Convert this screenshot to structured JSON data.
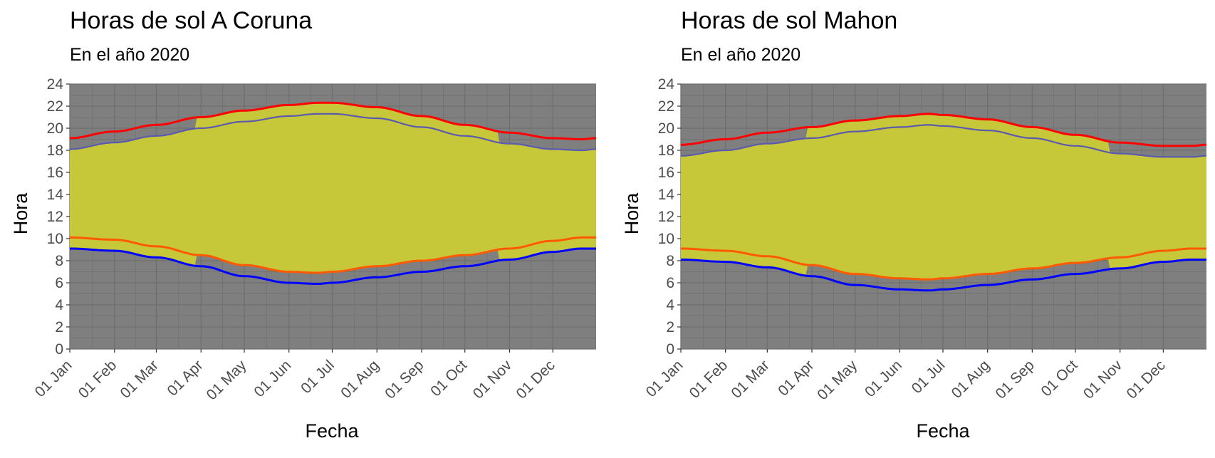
{
  "chart_data": [
    {
      "type": "area",
      "title": "Horas de sol A Coruna",
      "subtitle": "En el año 2020",
      "xlabel": "Fecha",
      "ylabel": "Hora",
      "ylim": [
        0,
        24
      ],
      "yticks": [
        "0",
        "2",
        "4",
        "6",
        "8",
        "10",
        "12",
        "14",
        "16",
        "18",
        "20",
        "22",
        "24"
      ],
      "xlim": [
        "2020-01-01",
        "2020-12-31"
      ],
      "xticks": [
        {
          "date": "2020-01-01",
          "label": "01 Jan"
        },
        {
          "date": "2020-02-01",
          "label": "01 Feb"
        },
        {
          "date": "2020-03-01",
          "label": "01 Mar"
        },
        {
          "date": "2020-04-01",
          "label": "01 Apr"
        },
        {
          "date": "2020-05-01",
          "label": "01 May"
        },
        {
          "date": "2020-06-01",
          "label": "01 Jun"
        },
        {
          "date": "2020-07-01",
          "label": "01 Jul"
        },
        {
          "date": "2020-08-01",
          "label": "01 Aug"
        },
        {
          "date": "2020-09-01",
          "label": "01 Sep"
        },
        {
          "date": "2020-10-01",
          "label": "01 Oct"
        },
        {
          "date": "2020-11-01",
          "label": "01 Nov"
        },
        {
          "date": "2020-12-01",
          "label": "01 Dec"
        }
      ],
      "dst_period": [
        "2020-03-29",
        "2020-10-25"
      ],
      "x": [
        "2020-01-01",
        "2020-02-01",
        "2020-03-01",
        "2020-04-01",
        "2020-05-01",
        "2020-06-01",
        "2020-06-21",
        "2020-07-01",
        "2020-08-01",
        "2020-09-01",
        "2020-10-01",
        "2020-11-01",
        "2020-12-01",
        "2020-12-21",
        "2020-12-31"
      ],
      "series": [
        {
          "color": "#0000ff",
          "values": [
            9.1,
            8.9,
            8.3,
            7.5,
            6.6,
            6.0,
            5.9,
            6.0,
            6.5,
            7.0,
            7.5,
            8.1,
            8.8,
            9.1,
            9.1
          ]
        },
        {
          "color": "#ff5a00",
          "values": [
            10.1,
            9.9,
            9.3,
            8.5,
            7.6,
            7.0,
            6.9,
            7.0,
            7.5,
            8.0,
            8.5,
            9.1,
            9.8,
            10.1,
            10.1
          ]
        },
        {
          "color": "#5a5aaf",
          "values": [
            18.1,
            18.7,
            19.3,
            20.0,
            20.6,
            21.1,
            21.3,
            21.3,
            20.9,
            20.1,
            19.3,
            18.6,
            18.1,
            18.0,
            18.1
          ]
        },
        {
          "color": "#ff0000",
          "values": [
            19.1,
            19.7,
            20.3,
            21.0,
            21.6,
            22.1,
            22.3,
            22.3,
            21.9,
            21.1,
            20.3,
            19.6,
            19.1,
            19.0,
            19.1
          ]
        }
      ],
      "colors": {
        "panel": "#7f7f7f",
        "grid": "#6f6f6f",
        "daylight": "#c7c73a"
      }
    },
    {
      "type": "area",
      "title": "Horas de sol Mahon",
      "subtitle": "En el año 2020",
      "xlabel": "Fecha",
      "ylabel": "Hora",
      "ylim": [
        0,
        24
      ],
      "yticks": [
        "0",
        "2",
        "4",
        "6",
        "8",
        "10",
        "12",
        "14",
        "16",
        "18",
        "20",
        "22",
        "24"
      ],
      "xlim": [
        "2020-01-01",
        "2020-12-31"
      ],
      "xticks": [
        {
          "date": "2020-01-01",
          "label": "01 Jan"
        },
        {
          "date": "2020-02-01",
          "label": "01 Feb"
        },
        {
          "date": "2020-03-01",
          "label": "01 Mar"
        },
        {
          "date": "2020-04-01",
          "label": "01 Apr"
        },
        {
          "date": "2020-05-01",
          "label": "01 May"
        },
        {
          "date": "2020-06-01",
          "label": "01 Jun"
        },
        {
          "date": "2020-07-01",
          "label": "01 Jul"
        },
        {
          "date": "2020-08-01",
          "label": "01 Aug"
        },
        {
          "date": "2020-09-01",
          "label": "01 Sep"
        },
        {
          "date": "2020-10-01",
          "label": "01 Oct"
        },
        {
          "date": "2020-11-01",
          "label": "01 Nov"
        },
        {
          "date": "2020-12-01",
          "label": "01 Dec"
        }
      ],
      "dst_period": [
        "2020-03-29",
        "2020-10-25"
      ],
      "x": [
        "2020-01-01",
        "2020-02-01",
        "2020-03-01",
        "2020-04-01",
        "2020-05-01",
        "2020-06-01",
        "2020-06-21",
        "2020-07-01",
        "2020-08-01",
        "2020-09-01",
        "2020-10-01",
        "2020-11-01",
        "2020-12-01",
        "2020-12-21",
        "2020-12-31"
      ],
      "series": [
        {
          "color": "#0000ff",
          "values": [
            8.1,
            7.9,
            7.4,
            6.6,
            5.8,
            5.4,
            5.3,
            5.4,
            5.8,
            6.3,
            6.8,
            7.3,
            7.9,
            8.1,
            8.1
          ]
        },
        {
          "color": "#ff5a00",
          "values": [
            9.1,
            8.9,
            8.4,
            7.6,
            6.8,
            6.4,
            6.3,
            6.4,
            6.8,
            7.3,
            7.8,
            8.3,
            8.9,
            9.1,
            9.1
          ]
        },
        {
          "color": "#5a5aaf",
          "values": [
            17.5,
            18.0,
            18.6,
            19.1,
            19.7,
            20.1,
            20.3,
            20.2,
            19.8,
            19.1,
            18.4,
            17.7,
            17.4,
            17.4,
            17.5
          ]
        },
        {
          "color": "#ff0000",
          "values": [
            18.5,
            19.0,
            19.6,
            20.1,
            20.7,
            21.1,
            21.3,
            21.2,
            20.8,
            20.1,
            19.4,
            18.7,
            18.4,
            18.4,
            18.5
          ]
        }
      ],
      "colors": {
        "panel": "#7f7f7f",
        "grid": "#6f6f6f",
        "daylight": "#c7c73a"
      }
    }
  ]
}
